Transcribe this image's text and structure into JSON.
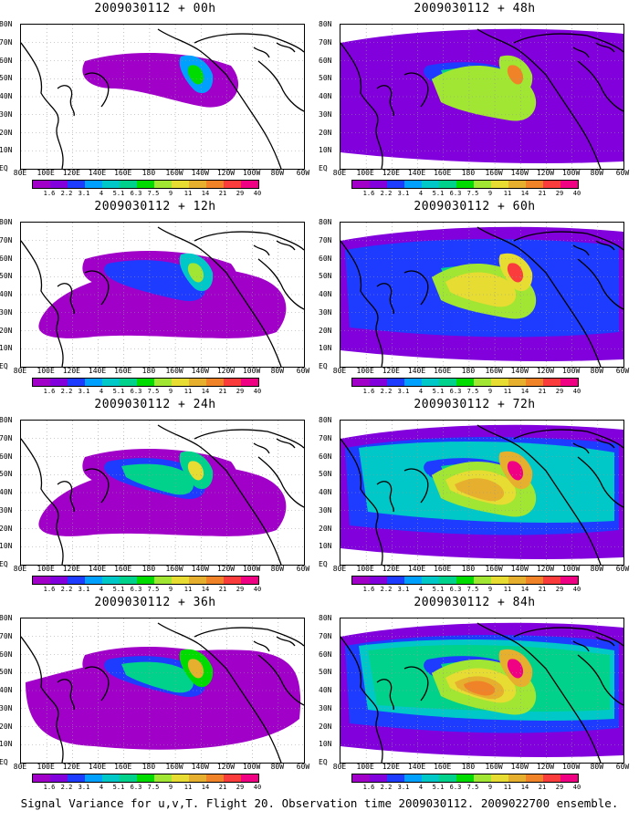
{
  "colorbar": {
    "labels": [
      "1.6",
      "2.2",
      "3.1",
      "4",
      "5.1",
      "6.3",
      "7.5",
      "9",
      "11",
      "14",
      "21",
      "29",
      "40"
    ],
    "colors": [
      "#a000c8",
      "#8200dc",
      "#1e3cff",
      "#00a0ff",
      "#00c8c8",
      "#00d28c",
      "#00dc00",
      "#a0e632",
      "#e6dc32",
      "#e6af2d",
      "#f08228",
      "#fa3c3c",
      "#f00082"
    ]
  },
  "axes": {
    "lat_labels": [
      "80N",
      "70N",
      "60N",
      "50N",
      "40N",
      "30N",
      "20N",
      "10N",
      "EQ"
    ],
    "lon_labels": [
      "80E",
      "100E",
      "120E",
      "140E",
      "160E",
      "180",
      "160W",
      "140W",
      "120W",
      "100W",
      "80W",
      "60W"
    ]
  },
  "panels": [
    {
      "title": "2009030112 + 00h",
      "level": 0
    },
    {
      "title": "2009030112 + 48h",
      "level": 4
    },
    {
      "title": "2009030112 + 12h",
      "level": 1
    },
    {
      "title": "2009030112 + 60h",
      "level": 5
    },
    {
      "title": "2009030112 + 24h",
      "level": 2
    },
    {
      "title": "2009030112 + 72h",
      "level": 6
    },
    {
      "title": "2009030112 + 36h",
      "level": 3
    },
    {
      "title": "2009030112 + 84h",
      "level": 7
    }
  ],
  "footer": "Signal Variance for u,v,T. Flight 20. Observation time 2009030112. 2009022700 ensemble."
}
